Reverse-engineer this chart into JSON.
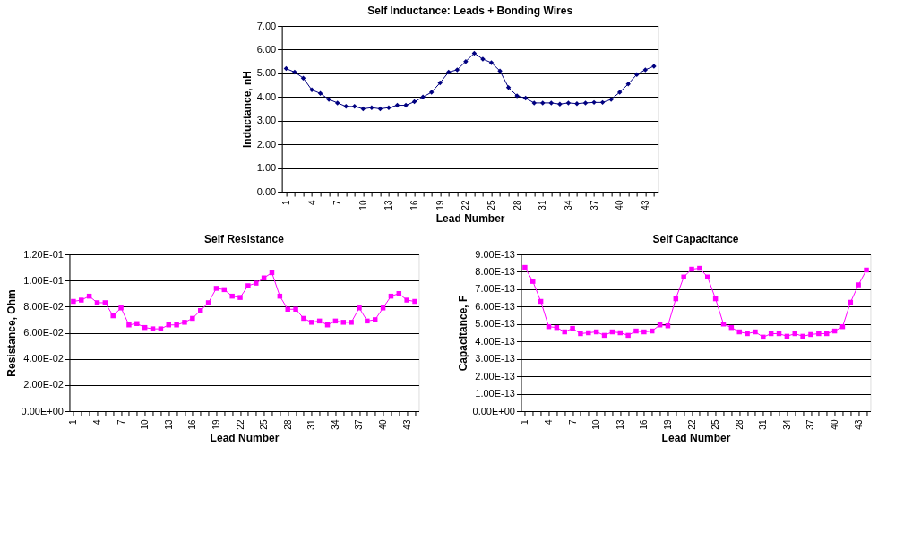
{
  "chart_data": [
    {
      "type": "line",
      "title": "Self Inductance:  Leads + Bonding Wires",
      "xlabel": "Lead Number",
      "ylabel": "Inductance, nH",
      "categories": [
        "1",
        null,
        null,
        "4",
        null,
        null,
        "7",
        null,
        null,
        "10",
        null,
        null,
        "13",
        null,
        null,
        "16",
        null,
        null,
        "19",
        null,
        null,
        "22",
        null,
        null,
        "25",
        null,
        null,
        "28",
        null,
        null,
        "31",
        null,
        null,
        "34",
        null,
        null,
        "37",
        null,
        null,
        "40",
        null,
        null,
        "43",
        null
      ],
      "series": [
        {
          "color": "#000080",
          "values": [
            5.2,
            5.05,
            4.8,
            4.3,
            4.15,
            3.9,
            3.75,
            3.6,
            3.6,
            3.5,
            3.55,
            3.5,
            3.55,
            3.65,
            3.65,
            3.8,
            4.0,
            4.2,
            4.6,
            5.05,
            5.15,
            5.5,
            5.85,
            5.6,
            5.45,
            5.1,
            4.4,
            4.05,
            3.95,
            3.75,
            3.75,
            3.75,
            3.7,
            3.75,
            3.72,
            3.75,
            3.77,
            3.77,
            3.9,
            4.2,
            4.55,
            4.95,
            5.15,
            5.3
          ]
        }
      ],
      "ylim": [
        0,
        7
      ],
      "yticks": [
        {
          "value": 0,
          "label": "0.00"
        },
        {
          "value": 1,
          "label": "1.00"
        },
        {
          "value": 2,
          "label": "2.00"
        },
        {
          "value": 3,
          "label": "3.00"
        },
        {
          "value": 4,
          "label": "4.00"
        },
        {
          "value": 5,
          "label": "5.00"
        },
        {
          "value": 6,
          "label": "6.00"
        },
        {
          "value": 7,
          "label": "7.00"
        }
      ],
      "grid": "y",
      "marker": "diamond",
      "line_style": "solid"
    },
    {
      "type": "line",
      "title": "Self Resistance",
      "xlabel": "Lead Number",
      "ylabel": "Resistance, Ohm",
      "categories": [
        "1",
        null,
        null,
        "4",
        null,
        null,
        "7",
        null,
        null,
        "10",
        null,
        null,
        "13",
        null,
        null,
        "16",
        null,
        null,
        "19",
        null,
        null,
        "22",
        null,
        null,
        "25",
        null,
        null,
        "28",
        null,
        null,
        "31",
        null,
        null,
        "34",
        null,
        null,
        "37",
        null,
        null,
        "40",
        null,
        null,
        "43",
        null
      ],
      "series": [
        {
          "color": "#ff00ff",
          "values": [
            0.084,
            0.085,
            0.088,
            0.083,
            0.083,
            0.073,
            0.079,
            0.066,
            0.067,
            0.064,
            0.063,
            0.063,
            0.066,
            0.066,
            0.068,
            0.071,
            0.077,
            0.083,
            0.094,
            0.093,
            0.088,
            0.087,
            0.096,
            0.098,
            0.102,
            0.106,
            0.088,
            0.078,
            0.078,
            0.071,
            0.068,
            0.069,
            0.066,
            0.069,
            0.068,
            0.068,
            0.079,
            0.069,
            0.07,
            0.079,
            0.088,
            0.09,
            0.085,
            0.084
          ]
        }
      ],
      "ylim": [
        0,
        0.12
      ],
      "yticks": [
        {
          "value": 0,
          "label": "0.00E+00"
        },
        {
          "value": 0.02,
          "label": "2.00E-02"
        },
        {
          "value": 0.04,
          "label": "4.00E-02"
        },
        {
          "value": 0.06,
          "label": "6.00E-02"
        },
        {
          "value": 0.08,
          "label": "8.00E-02"
        },
        {
          "value": 0.1,
          "label": "1.00E-01"
        },
        {
          "value": 0.12,
          "label": "1.20E-01"
        }
      ],
      "grid": "y",
      "marker": "square",
      "line_style": "solid"
    },
    {
      "type": "line",
      "title": "Self Capacitance",
      "xlabel": "Lead Number",
      "ylabel": "Capacitance, F",
      "categories": [
        "1",
        null,
        null,
        "4",
        null,
        null,
        "7",
        null,
        null,
        "10",
        null,
        null,
        "13",
        null,
        null,
        "16",
        null,
        null,
        "19",
        null,
        null,
        "22",
        null,
        null,
        "25",
        null,
        null,
        "28",
        null,
        null,
        "31",
        null,
        null,
        "34",
        null,
        null,
        "37",
        null,
        null,
        "40",
        null,
        null,
        "43",
        null
      ],
      "series": [
        {
          "color": "#ff00ff",
          "values": [
            8.25e-13,
            7.45e-13,
            6.3e-13,
            4.85e-13,
            4.8e-13,
            4.55e-13,
            4.75e-13,
            4.45e-13,
            4.5e-13,
            4.55e-13,
            4.35e-13,
            4.55e-13,
            4.5e-13,
            4.35e-13,
            4.6e-13,
            4.55e-13,
            4.6e-13,
            4.95e-13,
            4.9e-13,
            6.45e-13,
            7.7e-13,
            8.15e-13,
            8.2e-13,
            7.7e-13,
            6.45e-13,
            5e-13,
            4.8e-13,
            4.55e-13,
            4.45e-13,
            4.55e-13,
            4.25e-13,
            4.45e-13,
            4.45e-13,
            4.3e-13,
            4.45e-13,
            4.3e-13,
            4.4e-13,
            4.45e-13,
            4.45e-13,
            4.6e-13,
            4.85e-13,
            6.25e-13,
            7.25e-13,
            8.1e-13
          ]
        }
      ],
      "ylim": [
        0,
        9e-13
      ],
      "yticks": [
        {
          "value": 0,
          "label": "0.00E+00"
        },
        {
          "value": 1e-13,
          "label": "1.00E-13"
        },
        {
          "value": 2e-13,
          "label": "2.00E-13"
        },
        {
          "value": 3e-13,
          "label": "3.00E-13"
        },
        {
          "value": 4e-13,
          "label": "4.00E-13"
        },
        {
          "value": 5e-13,
          "label": "5.00E-13"
        },
        {
          "value": 6e-13,
          "label": "6.00E-13"
        },
        {
          "value": 7e-13,
          "label": "7.00E-13"
        },
        {
          "value": 8e-13,
          "label": "8.00E-13"
        },
        {
          "value": 9e-13,
          "label": "9.00E-13"
        }
      ],
      "grid": "y",
      "marker": "square",
      "line_style": "solid"
    }
  ]
}
